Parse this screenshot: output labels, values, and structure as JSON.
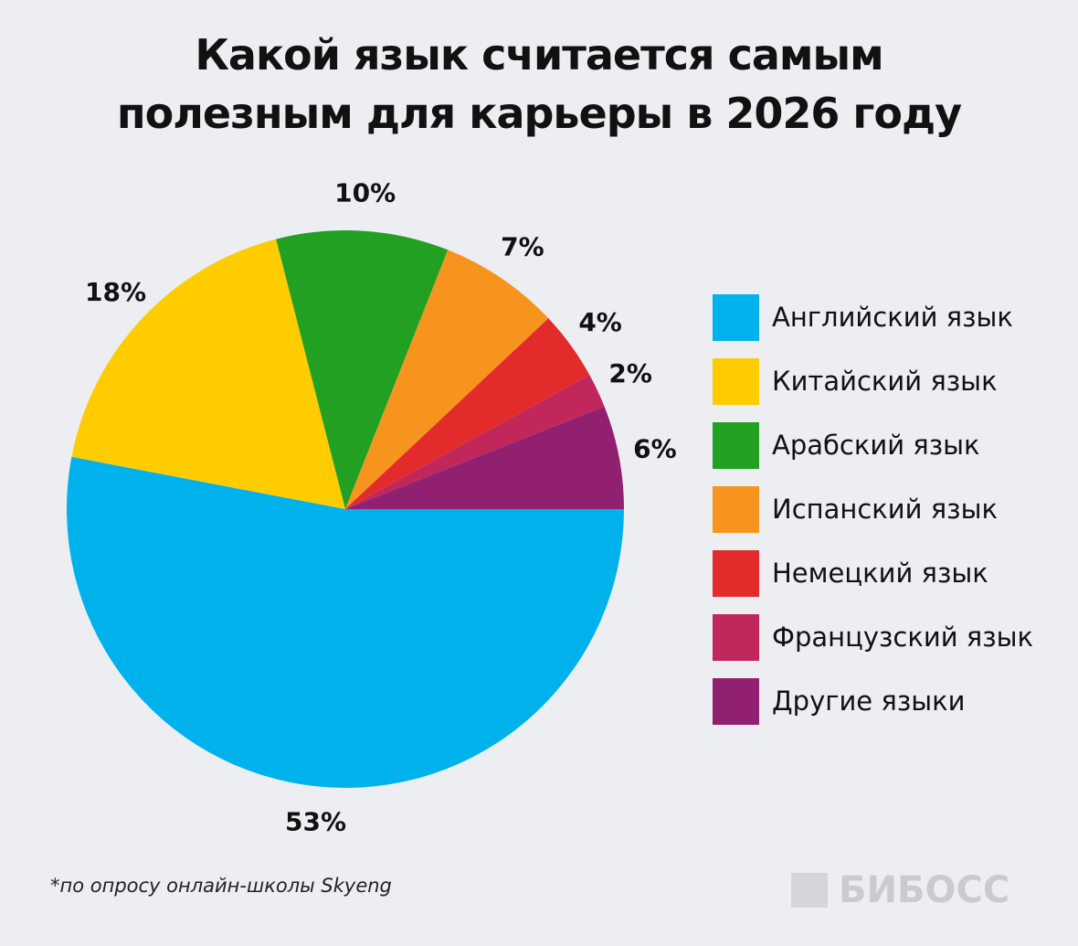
{
  "chart_data": {
    "type": "pie",
    "title": "Какой язык считается самым полезным для карьеры в 2026 году",
    "categories": [
      "Английский язык",
      "Китайский язык",
      "Арабский язык",
      "Испанский язык",
      "Немецкий язык",
      "Французский язык",
      "Другие языки"
    ],
    "values": [
      53,
      18,
      10,
      7,
      4,
      2,
      6
    ],
    "value_labels": [
      "53%",
      "18%",
      "10%",
      "7%",
      "4%",
      "2%",
      "6%"
    ],
    "colors": [
      "#00b2ec",
      "#ffcc00",
      "#22a022",
      "#f7941d",
      "#e32b2b",
      "#c1275b",
      "#922070"
    ],
    "legend": "right",
    "source": "*по опросу онлайн-школы Skyeng",
    "watermark": "БИБОСС"
  }
}
